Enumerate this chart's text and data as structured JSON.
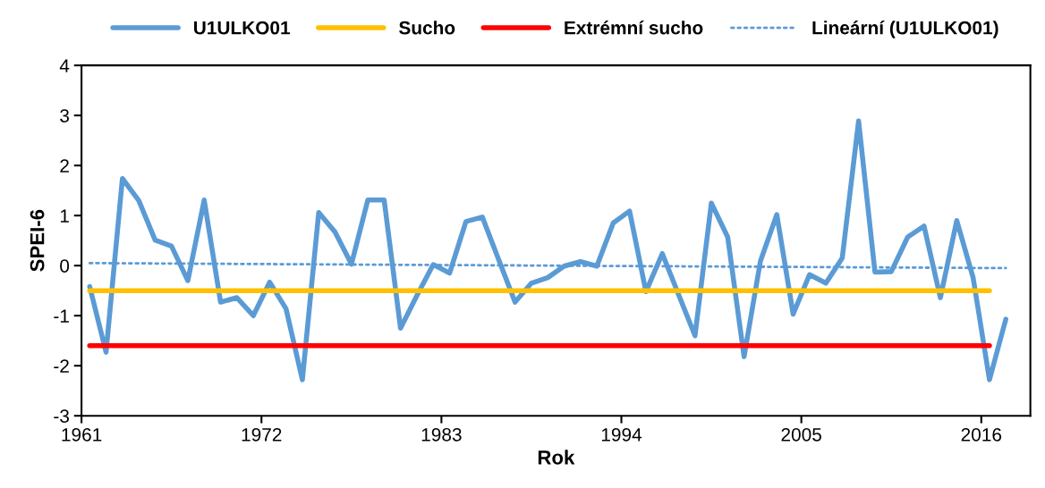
{
  "chart_data": {
    "type": "line",
    "xlabel": "Rok",
    "ylabel": "SPEI-6",
    "x": [
      1961,
      1962,
      1963,
      1964,
      1965,
      1966,
      1967,
      1968,
      1969,
      1970,
      1971,
      1972,
      1973,
      1974,
      1975,
      1976,
      1977,
      1978,
      1979,
      1980,
      1981,
      1982,
      1983,
      1984,
      1985,
      1986,
      1987,
      1988,
      1989,
      1990,
      1991,
      1992,
      1993,
      1994,
      1995,
      1996,
      1997,
      1998,
      1999,
      2000,
      2001,
      2002,
      2003,
      2004,
      2005,
      2006,
      2007,
      2008,
      2009,
      2010,
      2011,
      2012,
      2013,
      2014,
      2015,
      2016,
      2017
    ],
    "series": [
      {
        "name": "U1ULKO01",
        "color": "#5b9bd5",
        "line_style": "solid",
        "values": [
          -0.42,
          -1.73,
          1.74,
          1.3,
          0.51,
          0.39,
          -0.3,
          1.31,
          -0.73,
          -0.64,
          -1.0,
          -0.33,
          -0.86,
          -2.28,
          1.06,
          0.67,
          0.03,
          1.31,
          1.31,
          -1.25,
          -0.6,
          0.02,
          -0.15,
          0.88,
          0.97,
          0.12,
          -0.73,
          -0.35,
          -0.24,
          -0.01,
          0.08,
          -0.01,
          0.85,
          1.09,
          -0.52,
          0.24,
          -0.58,
          -1.4,
          1.25,
          0.57,
          -1.82,
          0.09,
          1.02,
          -0.97,
          -0.18,
          -0.35,
          0.15,
          2.89,
          -0.13,
          -0.12,
          0.57,
          0.79,
          -0.64,
          0.9,
          -0.24,
          -2.28,
          -1.07
        ]
      },
      {
        "name": "Sucho",
        "color": "#ffc000",
        "line_style": "solid",
        "x": [
          1961,
          2016
        ],
        "values": [
          -0.5,
          -0.5
        ]
      },
      {
        "name": "Extrémní sucho",
        "color": "#ff0000",
        "line_style": "solid",
        "x": [
          1961,
          2016
        ],
        "values": [
          -1.6,
          -1.6
        ]
      },
      {
        "name": "Lineární (U1ULKO01)",
        "color": "#5b9bd5",
        "line_style": "dotted",
        "x": [
          1961,
          2017
        ],
        "values": [
          0.05,
          -0.05
        ]
      }
    ],
    "xlim": [
      1960.5,
      2018.5
    ],
    "xticks": [
      {
        "value": 1960.5,
        "label": "1961"
      },
      {
        "value": 1971.5,
        "label": "1972"
      },
      {
        "value": 1982.5,
        "label": "1983"
      },
      {
        "value": 1993.5,
        "label": "1994"
      },
      {
        "value": 2004.5,
        "label": "2005"
      },
      {
        "value": 2015.5,
        "label": "2016"
      }
    ],
    "ylim": [
      -3,
      4
    ],
    "yticks": [
      -3,
      -2,
      -1,
      0,
      1,
      2,
      3,
      4
    ],
    "grid": false,
    "legend": "top",
    "marker": "none"
  }
}
